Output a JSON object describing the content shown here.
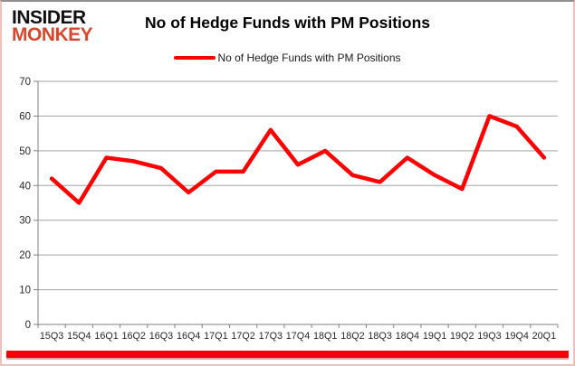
{
  "branding": {
    "logo_line1": "INSIDER",
    "logo_line2": "MONKEY",
    "logo_accent_color": "#d9472b",
    "logo_text_color": "#111111"
  },
  "title": "No of Hedge Funds with PM Positions",
  "legend": {
    "label": "No of Hedge Funds with PM Positions",
    "line_color": "#ff0000"
  },
  "chart_data": {
    "type": "line",
    "title": "No of Hedge Funds with PM Positions",
    "categories": [
      "15Q3",
      "15Q4",
      "16Q1",
      "16Q2",
      "16Q3",
      "16Q4",
      "17Q1",
      "17Q2",
      "17Q3",
      "17Q4",
      "18Q1",
      "18Q2",
      "18Q3",
      "18Q4",
      "19Q1",
      "19Q2",
      "19Q3",
      "19Q4",
      "20Q1"
    ],
    "values": [
      42,
      35,
      48,
      47,
      45,
      38,
      44,
      44,
      56,
      46,
      50,
      43,
      41,
      48,
      43,
      39,
      60,
      57,
      48
    ],
    "xlabel": "",
    "ylabel": "",
    "ylim": [
      0,
      70
    ],
    "yticks": [
      0,
      10,
      20,
      30,
      40,
      50,
      60,
      70
    ],
    "grid": true,
    "legend_position": "top-center",
    "series_color": "#ff0000",
    "gridline_color": "#a3a3a3",
    "axis_color": "#808080",
    "tick_label_color": "#262626"
  },
  "frame": {
    "bottom_bar_color": "#f40205"
  }
}
